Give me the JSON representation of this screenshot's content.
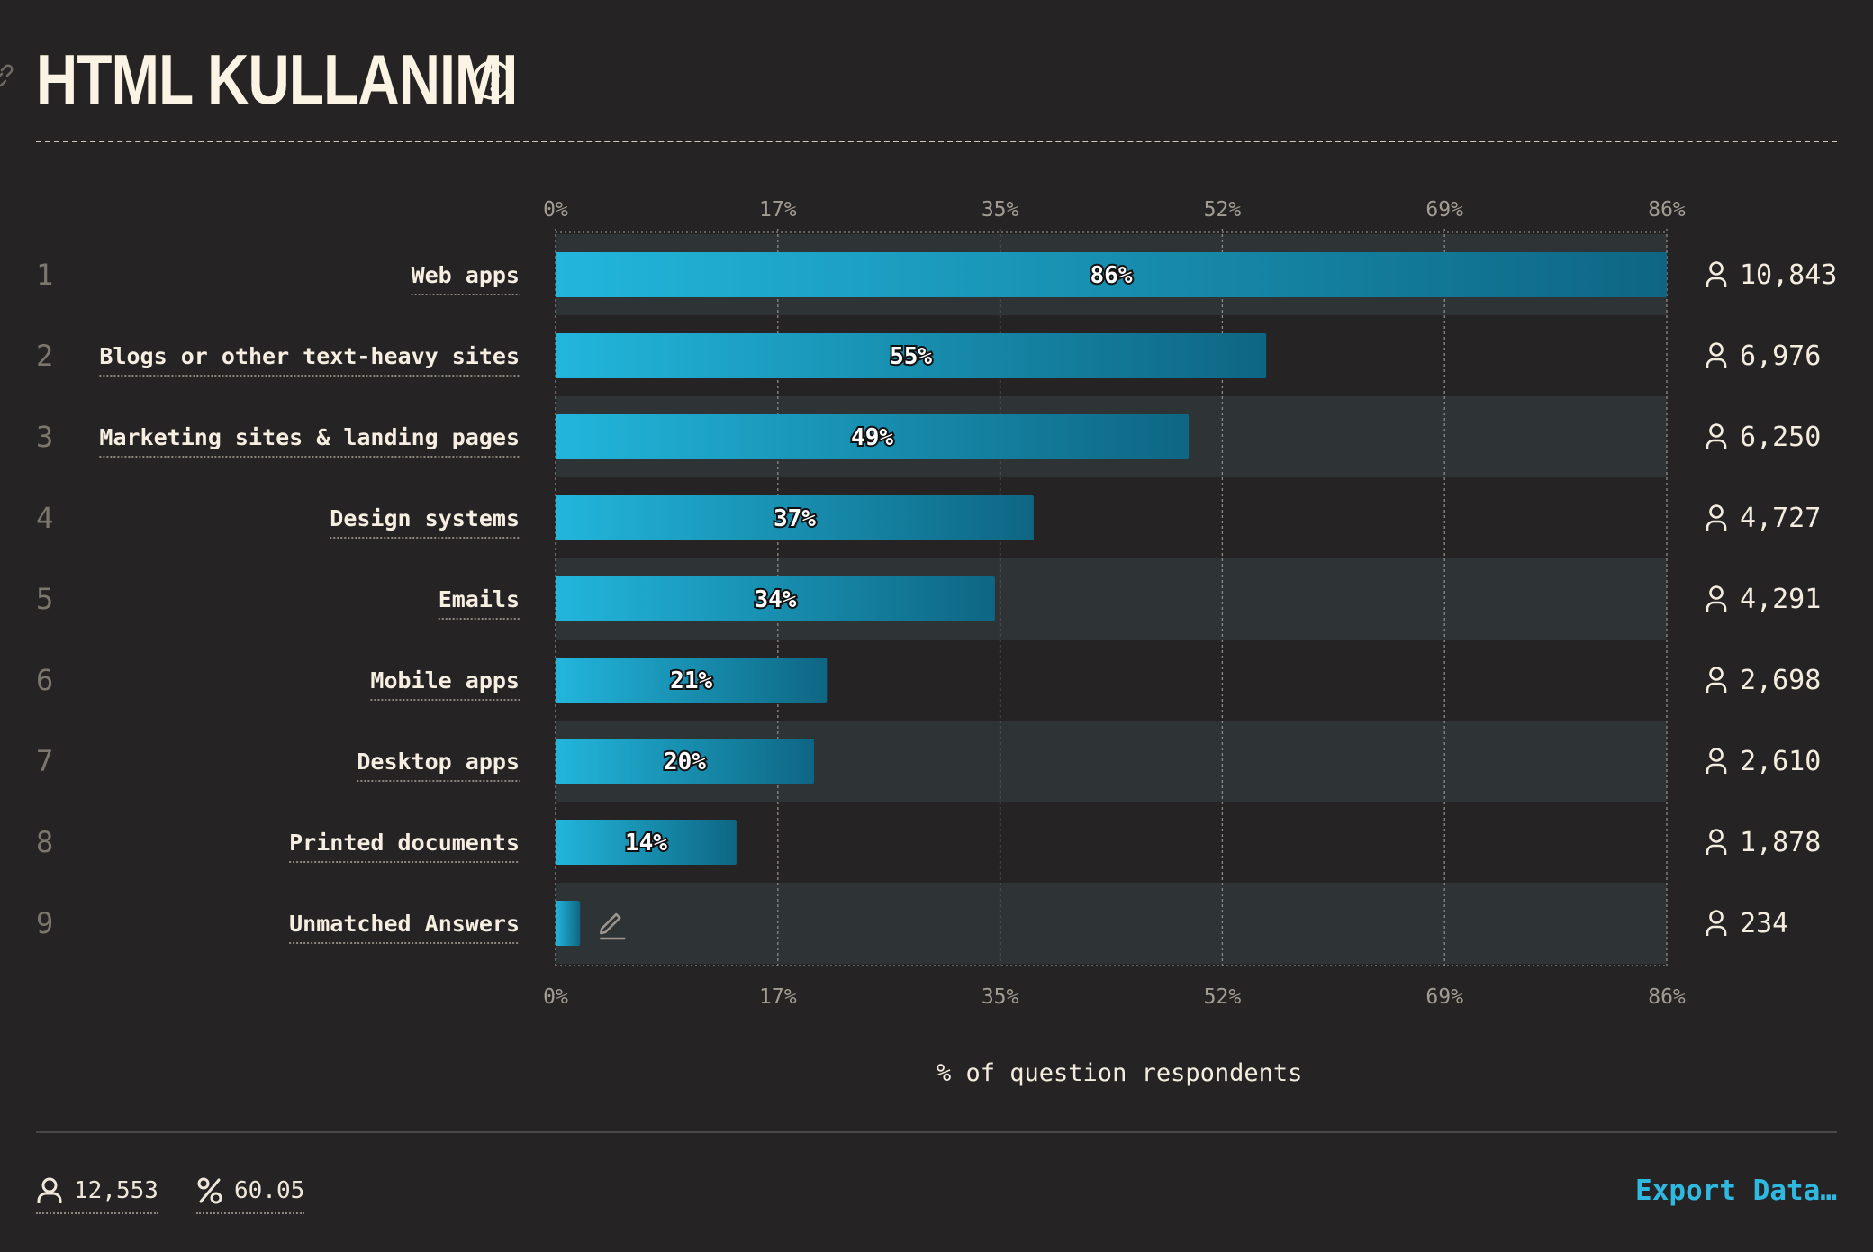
{
  "header": {
    "title": "HTML KULLANIMI"
  },
  "chart_data": {
    "type": "bar",
    "orientation": "horizontal",
    "title": "HTML KULLANIMI",
    "xlabel": "% of question respondents",
    "xlim": [
      0,
      86
    ],
    "xticks": [
      "0%",
      "17%",
      "35%",
      "52%",
      "69%",
      "86%"
    ],
    "xtick_values": [
      0,
      17.2,
      34.4,
      51.6,
      68.8,
      86
    ],
    "grid": true,
    "colors": {
      "bar_start": "#22b6dc",
      "bar_end": "#0e6683",
      "band": "#2e3336"
    },
    "categories": [
      "Web apps",
      "Blogs or other text-heavy sites",
      "Marketing sites & landing pages",
      "Design systems",
      "Emails",
      "Mobile apps",
      "Desktop apps",
      "Printed documents",
      "Unmatched Answers"
    ],
    "ranks": [
      "1",
      "2",
      "3",
      "4",
      "5",
      "6",
      "7",
      "8",
      "9"
    ],
    "values": [
      86,
      55,
      49,
      37,
      34,
      21,
      20,
      14,
      1.9
    ],
    "labels": [
      "86%",
      "55%",
      "49%",
      "37%",
      "34%",
      "21%",
      "20%",
      "14%",
      ""
    ],
    "counts": [
      "10,843",
      "6,976",
      "6,250",
      "4,727",
      "4,291",
      "2,698",
      "2,610",
      "1,878",
      "234"
    ]
  },
  "footer": {
    "respondents": "12,553",
    "percentage": "60.05",
    "export_label": "Export Data…"
  }
}
